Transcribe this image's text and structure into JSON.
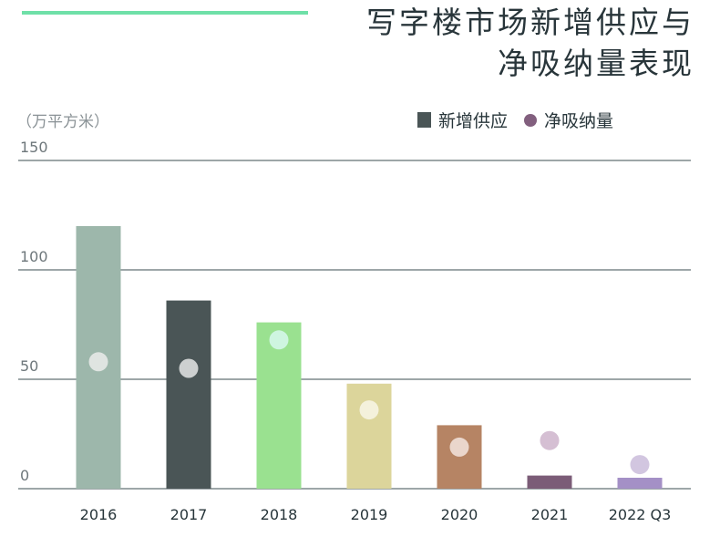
{
  "title": {
    "line1": "写字楼市场新增供应与",
    "line2": "净吸纳量表现"
  },
  "unit": "（万平方米）",
  "legend": {
    "supply": "新增供应",
    "absorption": "净吸纳量"
  },
  "colors": {
    "accent": "#6fe0a8",
    "text": "#28353a",
    "muted": "#8a9296",
    "grid": "#3b4d52"
  },
  "chart_data": {
    "type": "bar",
    "title": "写字楼市场新增供应与净吸纳量表现",
    "ylabel": "（万平方米）",
    "xlabel": "",
    "ylim": [
      0,
      150
    ],
    "yticks": [
      "150",
      "100",
      "50",
      "0"
    ],
    "ytick_values": [
      150,
      100,
      50,
      0
    ],
    "categories": [
      "2016",
      "2017",
      "2018",
      "2019",
      "2020",
      "2021",
      "2022 Q3"
    ],
    "series": [
      {
        "name": "新增供应",
        "type": "bar",
        "values": [
          120,
          86,
          76,
          48,
          29,
          6,
          5
        ],
        "colors": [
          "#9db7ab",
          "#4a5556",
          "#9ae190",
          "#dcd59b",
          "#b68464",
          "#7b5c77",
          "#a490c6"
        ]
      },
      {
        "name": "净吸纳量",
        "type": "scatter",
        "values": [
          58,
          55,
          68,
          36,
          19,
          22,
          11
        ],
        "colors": [
          "#dfe4e1",
          "#cdd0d0",
          "#cef5e0",
          "#f4f1dc",
          "#ead6cc",
          "#d5bfd3",
          "#d2c6e0"
        ]
      }
    ],
    "grid": true,
    "legend_position": "top-right"
  }
}
